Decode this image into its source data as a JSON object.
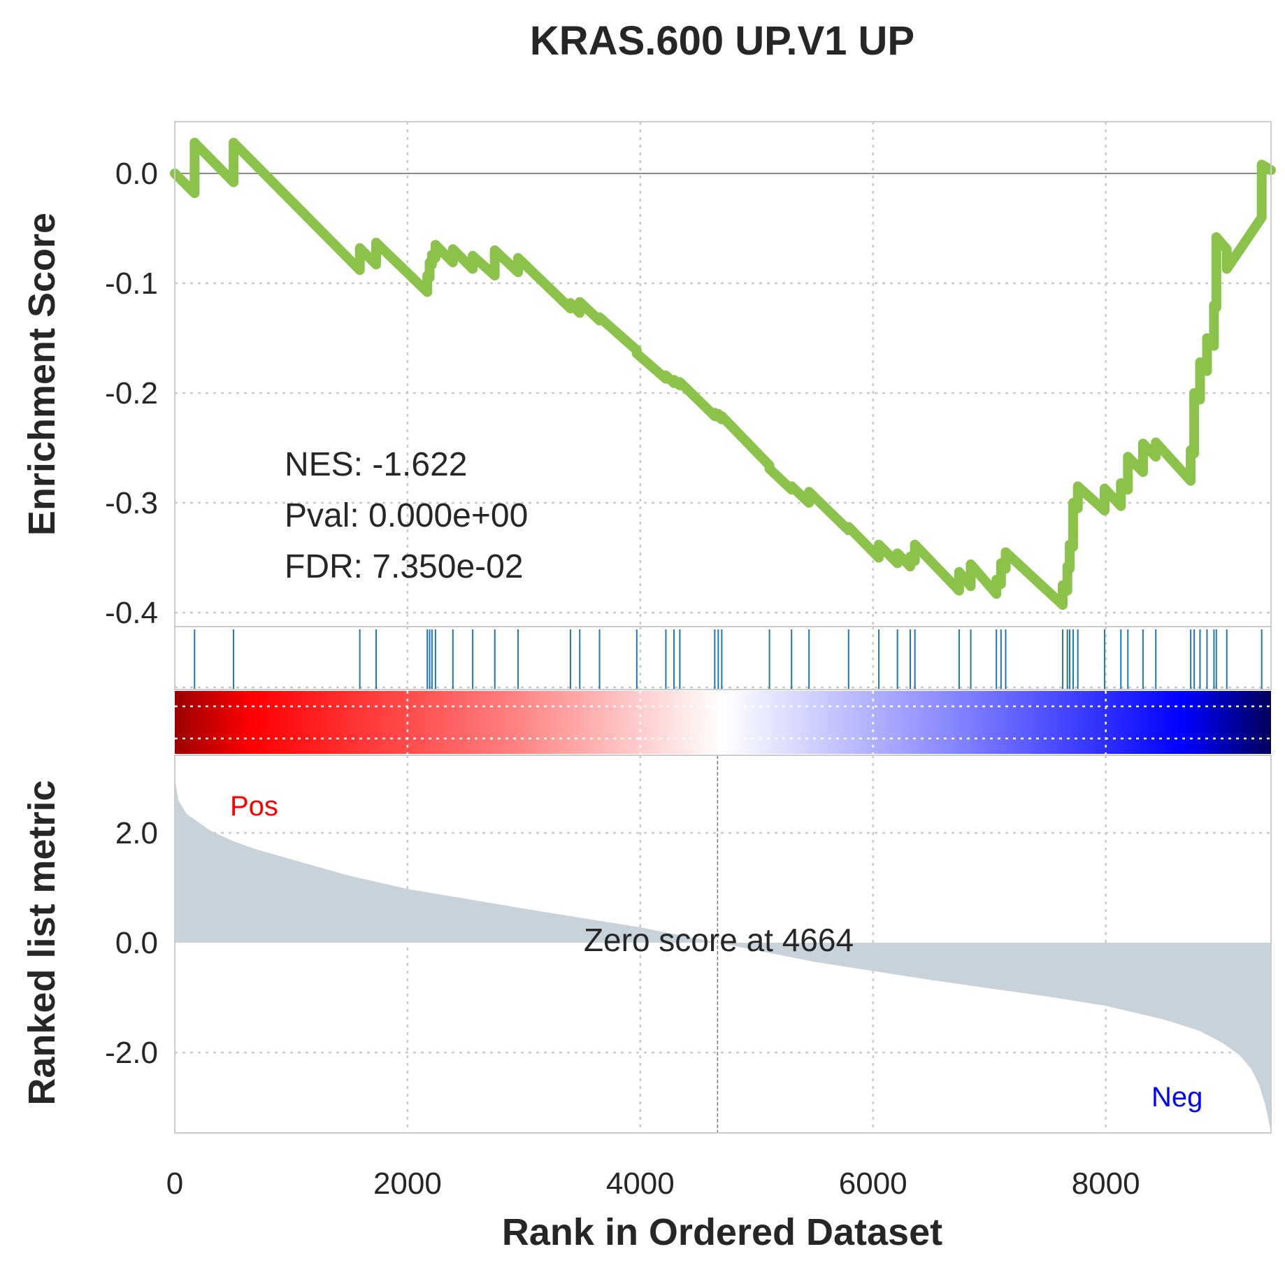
{
  "chart_data": {
    "type": "line",
    "title": "KRAS.600 UP.V1 UP",
    "xlabel": "Rank in Ordered Dataset",
    "xlim": [
      0,
      9420
    ],
    "x_ticks": [
      "0",
      "2000",
      "4000",
      "6000",
      "8000"
    ],
    "x_tick_values": [
      0,
      2000,
      4000,
      6000,
      8000
    ],
    "grid": true,
    "colors": {
      "running_es": "#8bc34a",
      "hits": "#1f77b4",
      "metric_fill": "#c8d2db",
      "pos_label": "#ff0000",
      "neg_label": "#0000ff"
    },
    "enrichment_panel": {
      "ylabel": "Enrichment Score",
      "ylim": [
        -0.4,
        0.05
      ],
      "y_ticks": [
        "0.0",
        "-0.1",
        "-0.2",
        "-0.3",
        "-0.4"
      ],
      "y_tick_values": [
        0.0,
        -0.1,
        -0.2,
        -0.3,
        -0.4
      ],
      "stats": {
        "nes": "NES: -1.622",
        "pval": "Pval: 0.000e+00",
        "fdr": "FDR: 7.350e-02"
      },
      "hit_ranks": [
        170,
        505,
        1590,
        1730,
        2170,
        2190,
        2210,
        2240,
        2390,
        2560,
        2750,
        2950,
        3400,
        3480,
        3650,
        3970,
        4220,
        4290,
        4340,
        4640,
        4670,
        4700,
        5110,
        5300,
        5450,
        5790,
        6050,
        6210,
        6320,
        6360,
        6740,
        6840,
        7060,
        7100,
        7140,
        7630,
        7670,
        7690,
        7720,
        7760,
        7990,
        8130,
        8190,
        8320,
        8430,
        8730,
        8760,
        8810,
        8870,
        8930,
        8950,
        9040,
        9340
      ],
      "running_es": {
        "x": [
          0,
          170,
          170,
          505,
          505,
          1590,
          1590,
          1730,
          1730,
          2170,
          2170,
          2190,
          2190,
          2210,
          2210,
          2240,
          2240,
          2390,
          2390,
          2560,
          2560,
          2750,
          2750,
          2950,
          2950,
          3400,
          3400,
          3480,
          3480,
          3650,
          3650,
          3970,
          3970,
          4220,
          4220,
          4290,
          4290,
          4340,
          4340,
          4640,
          4640,
          4670,
          4670,
          4700,
          4700,
          5110,
          5110,
          5300,
          5300,
          5450,
          5450,
          5790,
          5790,
          6050,
          6050,
          6210,
          6210,
          6320,
          6320,
          6360,
          6360,
          6740,
          6740,
          6840,
          6840,
          7060,
          7060,
          7100,
          7100,
          7140,
          7140,
          7630,
          7630,
          7670,
          7670,
          7690,
          7690,
          7720,
          7720,
          7760,
          7760,
          7990,
          7990,
          8130,
          8130,
          8190,
          8190,
          8320,
          8320,
          8430,
          8430,
          8730,
          8730,
          8760,
          8760,
          8810,
          8810,
          8870,
          8870,
          8930,
          8930,
          8950,
          8950,
          9040,
          9040,
          9340,
          9340,
          9420
        ],
        "y": [
          0.0,
          -0.018,
          0.028,
          -0.008,
          0.028,
          -0.088,
          -0.068,
          -0.083,
          -0.063,
          -0.108,
          -0.093,
          -0.095,
          -0.081,
          -0.083,
          -0.074,
          -0.077,
          -0.065,
          -0.081,
          -0.069,
          -0.087,
          -0.075,
          -0.093,
          -0.07,
          -0.09,
          -0.077,
          -0.123,
          -0.118,
          -0.127,
          -0.117,
          -0.134,
          -0.131,
          -0.161,
          -0.164,
          -0.187,
          -0.184,
          -0.191,
          -0.188,
          -0.193,
          -0.19,
          -0.221,
          -0.218,
          -0.222,
          -0.219,
          -0.224,
          -0.221,
          -0.266,
          -0.269,
          -0.288,
          -0.285,
          -0.3,
          -0.29,
          -0.325,
          -0.322,
          -0.35,
          -0.338,
          -0.355,
          -0.346,
          -0.358,
          -0.349,
          -0.353,
          -0.338,
          -0.38,
          -0.363,
          -0.376,
          -0.356,
          -0.383,
          -0.37,
          -0.374,
          -0.355,
          -0.36,
          -0.345,
          -0.393,
          -0.375,
          -0.38,
          -0.358,
          -0.36,
          -0.338,
          -0.34,
          -0.3,
          -0.305,
          -0.285,
          -0.307,
          -0.287,
          -0.303,
          -0.282,
          -0.288,
          -0.258,
          -0.272,
          -0.246,
          -0.258,
          -0.245,
          -0.28,
          -0.252,
          -0.255,
          -0.2,
          -0.206,
          -0.172,
          -0.18,
          -0.15,
          -0.157,
          -0.12,
          -0.122,
          -0.058,
          -0.069,
          -0.087,
          -0.04,
          0.008,
          0.003
        ]
      }
    },
    "metric_panel": {
      "ylabel": "Ranked list metric",
      "ylim": [
        -3.5,
        3.4
      ],
      "y_ticks": [
        "2.0",
        "0.0",
        "-2.0"
      ],
      "y_tick_values": [
        2.0,
        0.0,
        -2.0
      ],
      "zero_cross_rank": 4664,
      "zero_label": "Zero score at 4664",
      "pos_label": "Pos",
      "neg_label": "Neg",
      "metric": {
        "x": [
          0,
          30,
          100,
          200,
          300,
          500,
          700,
          1000,
          1500,
          2000,
          3000,
          4000,
          4664,
          5500,
          6500,
          7500,
          8000,
          8500,
          8800,
          9000,
          9150,
          9250,
          9320,
          9370,
          9400,
          9420
        ],
        "y": [
          3.0,
          2.6,
          2.35,
          2.2,
          2.05,
          1.85,
          1.7,
          1.52,
          1.22,
          0.98,
          0.62,
          0.28,
          0.0,
          -0.35,
          -0.68,
          -0.98,
          -1.15,
          -1.4,
          -1.6,
          -1.82,
          -2.05,
          -2.3,
          -2.6,
          -2.95,
          -3.25,
          -3.5
        ]
      }
    }
  }
}
